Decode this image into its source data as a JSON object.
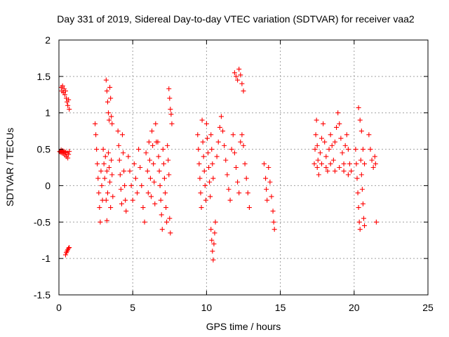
{
  "chart_data": {
    "type": "scatter",
    "title": "Day 331 of 2019, Sidereal Day-to-day VTEC variation (SDTVAR) for receiver vaa2",
    "xlabel": "GPS time / hours",
    "ylabel": "SDTVAR / TECUs",
    "xlim": [
      0,
      25
    ],
    "ylim": [
      -1.5,
      2
    ],
    "xticks": [
      0,
      5,
      10,
      15,
      20,
      25
    ],
    "xtick_labels": [
      "0",
      "5",
      "10",
      "15",
      "20",
      "25"
    ],
    "yticks": [
      -1.5,
      -1,
      -0.5,
      0,
      0.5,
      1,
      1.5,
      2
    ],
    "ytick_labels": [
      "-1.5",
      "-1",
      "-0.5",
      "0",
      "0.5",
      "1",
      "1.5",
      "2"
    ],
    "grid": true,
    "marker": "+",
    "color": "#ff0000",
    "series": [
      {
        "name": "SDTVAR",
        "points": [
          [
            0.05,
            0.47
          ],
          [
            0.1,
            0.46
          ],
          [
            0.15,
            0.49
          ],
          [
            0.2,
            0.45
          ],
          [
            0.25,
            0.48
          ],
          [
            0.3,
            0.44
          ],
          [
            0.35,
            0.47
          ],
          [
            0.4,
            0.42
          ],
          [
            0.45,
            0.46
          ],
          [
            0.5,
            0.4
          ],
          [
            0.55,
            0.45
          ],
          [
            0.6,
            0.38
          ],
          [
            0.65,
            0.43
          ],
          [
            0.7,
            0.47
          ],
          [
            0.15,
            1.35
          ],
          [
            0.2,
            1.3
          ],
          [
            0.25,
            1.37
          ],
          [
            0.3,
            1.28
          ],
          [
            0.35,
            1.33
          ],
          [
            0.4,
            1.25
          ],
          [
            0.45,
            1.3
          ],
          [
            0.5,
            1.2
          ],
          [
            0.55,
            1.15
          ],
          [
            0.6,
            1.1
          ],
          [
            0.65,
            1.18
          ],
          [
            0.7,
            1.05
          ],
          [
            0.45,
            -0.95
          ],
          [
            0.5,
            -0.92
          ],
          [
            0.55,
            -0.9
          ],
          [
            0.6,
            -0.88
          ],
          [
            0.65,
            -0.86
          ],
          [
            0.7,
            -0.85
          ],
          [
            2.45,
            0.85
          ],
          [
            2.5,
            0.7
          ],
          [
            2.55,
            0.5
          ],
          [
            2.6,
            0.3
          ],
          [
            2.65,
            0.1
          ],
          [
            2.7,
            -0.1
          ],
          [
            2.75,
            -0.3
          ],
          [
            2.8,
            -0.5
          ],
          [
            2.85,
            0.2
          ],
          [
            2.9,
            0.0
          ],
          [
            2.95,
            -0.2
          ],
          [
            3.0,
            0.5
          ],
          [
            3.05,
            0.3
          ],
          [
            3.1,
            0.1
          ],
          [
            3.15,
            0.4
          ],
          [
            3.2,
            -0.2
          ],
          [
            3.25,
            0.2
          ],
          [
            3.3,
            -0.1
          ],
          [
            3.35,
            0.45
          ],
          [
            3.4,
            0.25
          ],
          [
            3.45,
            0.05
          ],
          [
            3.5,
            -0.3
          ],
          [
            3.55,
            0.35
          ],
          [
            3.6,
            0.15
          ],
          [
            3.65,
            -0.15
          ],
          [
            3.2,
            1.45
          ],
          [
            3.25,
            1.3
          ],
          [
            3.3,
            1.15
          ],
          [
            3.35,
            1.0
          ],
          [
            3.4,
            0.9
          ],
          [
            3.45,
            1.35
          ],
          [
            3.5,
            1.2
          ],
          [
            3.55,
            0.95
          ],
          [
            3.6,
            0.85
          ],
          [
            3.25,
            -0.48
          ],
          [
            4.0,
            0.75
          ],
          [
            4.05,
            0.55
          ],
          [
            4.1,
            0.35
          ],
          [
            4.15,
            0.15
          ],
          [
            4.2,
            -0.05
          ],
          [
            4.25,
            -0.25
          ],
          [
            4.3,
            0.7
          ],
          [
            4.35,
            0.45
          ],
          [
            4.4,
            0.2
          ],
          [
            4.45,
            0.0
          ],
          [
            4.5,
            -0.2
          ],
          [
            4.55,
            -0.35
          ],
          [
            4.7,
            0.4
          ],
          [
            4.8,
            0.2
          ],
          [
            4.9,
            0.0
          ],
          [
            5.0,
            -0.2
          ],
          [
            5.1,
            0.3
          ],
          [
            5.2,
            0.1
          ],
          [
            5.3,
            -0.1
          ],
          [
            5.4,
            0.5
          ],
          [
            5.5,
            0.25
          ],
          [
            5.6,
            0.0
          ],
          [
            5.7,
            -0.3
          ],
          [
            5.8,
            -0.5
          ],
          [
            5.9,
            0.45
          ],
          [
            6.0,
            0.2
          ],
          [
            6.05,
            -0.1
          ],
          [
            6.1,
            0.6
          ],
          [
            6.15,
            0.35
          ],
          [
            6.2,
            0.1
          ],
          [
            6.25,
            -0.15
          ],
          [
            6.3,
            0.75
          ],
          [
            6.35,
            0.55
          ],
          [
            6.4,
            0.3
          ],
          [
            6.45,
            0.05
          ],
          [
            6.5,
            -0.25
          ],
          [
            6.55,
            0.85
          ],
          [
            6.6,
            0.6
          ],
          [
            6.7,
            0.6
          ],
          [
            6.75,
            0.4
          ],
          [
            6.8,
            0.2
          ],
          [
            6.85,
            0.0
          ],
          [
            6.9,
            -0.2
          ],
          [
            6.95,
            -0.4
          ],
          [
            7.0,
            -0.6
          ],
          [
            7.05,
            0.5
          ],
          [
            7.1,
            0.3
          ],
          [
            7.15,
            0.1
          ],
          [
            7.2,
            -0.1
          ],
          [
            7.25,
            -0.3
          ],
          [
            7.3,
            -0.5
          ],
          [
            7.35,
            0.55
          ],
          [
            7.4,
            0.35
          ],
          [
            7.45,
            0.15
          ],
          [
            7.5,
            -0.45
          ],
          [
            7.55,
            -0.65
          ],
          [
            7.45,
            1.33
          ],
          [
            7.5,
            1.2
          ],
          [
            7.55,
            1.05
          ],
          [
            7.6,
            0.98
          ],
          [
            7.65,
            0.85
          ],
          [
            9.4,
            0.7
          ],
          [
            9.45,
            0.5
          ],
          [
            9.5,
            0.3
          ],
          [
            9.55,
            0.1
          ],
          [
            9.6,
            -0.1
          ],
          [
            9.65,
            -0.3
          ],
          [
            9.7,
            0.9
          ],
          [
            9.75,
            0.6
          ],
          [
            9.8,
            0.4
          ],
          [
            9.85,
            0.2
          ],
          [
            9.9,
            0.0
          ],
          [
            9.95,
            -0.2
          ],
          [
            10.0,
            0.85
          ],
          [
            10.05,
            0.65
          ],
          [
            10.1,
            0.45
          ],
          [
            10.15,
            0.25
          ],
          [
            10.2,
            0.05
          ],
          [
            10.25,
            -0.15
          ],
          [
            10.3,
            0.7
          ],
          [
            10.35,
            0.5
          ],
          [
            10.4,
            0.3
          ],
          [
            10.45,
            0.1
          ],
          [
            10.3,
            -0.6
          ],
          [
            10.35,
            -0.75
          ],
          [
            10.4,
            -0.9
          ],
          [
            10.45,
            -1.02
          ],
          [
            10.5,
            -0.8
          ],
          [
            10.55,
            -0.65
          ],
          [
            10.6,
            -0.5
          ],
          [
            10.7,
            0.4
          ],
          [
            10.8,
            0.6
          ],
          [
            10.9,
            0.8
          ],
          [
            11.0,
            0.95
          ],
          [
            11.1,
            0.75
          ],
          [
            11.2,
            0.55
          ],
          [
            11.3,
            0.35
          ],
          [
            11.4,
            0.15
          ],
          [
            11.5,
            -0.05
          ],
          [
            11.6,
            -0.2
          ],
          [
            11.7,
            0.5
          ],
          [
            11.8,
            0.7
          ],
          [
            11.9,
            0.45
          ],
          [
            12.0,
            0.25
          ],
          [
            12.1,
            0.05
          ],
          [
            12.2,
            -0.1
          ],
          [
            12.3,
            0.6
          ],
          [
            12.4,
            0.7
          ],
          [
            12.5,
            0.55
          ],
          [
            12.6,
            0.3
          ],
          [
            12.7,
            0.1
          ],
          [
            12.8,
            -0.1
          ],
          [
            12.9,
            -0.3
          ],
          [
            11.9,
            1.55
          ],
          [
            12.0,
            1.5
          ],
          [
            12.1,
            1.45
          ],
          [
            12.2,
            1.6
          ],
          [
            12.3,
            1.52
          ],
          [
            12.4,
            1.4
          ],
          [
            12.5,
            1.3
          ],
          [
            13.9,
            0.3
          ],
          [
            14.0,
            0.1
          ],
          [
            14.05,
            -0.05
          ],
          [
            14.1,
            -0.2
          ],
          [
            14.2,
            0.25
          ],
          [
            14.3,
            0.05
          ],
          [
            14.4,
            -0.15
          ],
          [
            14.5,
            -0.35
          ],
          [
            14.55,
            -0.5
          ],
          [
            14.6,
            -0.6
          ],
          [
            17.3,
            0.3
          ],
          [
            17.35,
            0.5
          ],
          [
            17.4,
            0.7
          ],
          [
            17.45,
            0.9
          ],
          [
            17.5,
            0.55
          ],
          [
            17.55,
            0.35
          ],
          [
            17.6,
            0.15
          ],
          [
            17.7,
            0.45
          ],
          [
            17.8,
            0.65
          ],
          [
            17.9,
            0.85
          ],
          [
            18.0,
            0.6
          ],
          [
            18.1,
            0.4
          ],
          [
            18.2,
            0.2
          ],
          [
            18.3,
            0.5
          ],
          [
            18.4,
            0.7
          ],
          [
            18.5,
            0.55
          ],
          [
            18.6,
            0.35
          ],
          [
            18.7,
            0.6
          ],
          [
            18.8,
            0.8
          ],
          [
            18.9,
            1.0
          ],
          [
            19.0,
            0.85
          ],
          [
            19.1,
            0.65
          ],
          [
            19.2,
            0.45
          ],
          [
            19.3,
            0.3
          ],
          [
            19.4,
            0.55
          ],
          [
            19.5,
            0.7
          ],
          [
            19.6,
            0.5
          ],
          [
            19.7,
            0.3
          ],
          [
            19.8,
            0.2
          ],
          [
            17.5,
            0.25
          ],
          [
            17.8,
            0.3
          ],
          [
            18.1,
            0.25
          ],
          [
            18.4,
            0.3
          ],
          [
            18.7,
            0.2
          ],
          [
            19.0,
            0.25
          ],
          [
            19.3,
            0.2
          ],
          [
            19.6,
            0.15
          ],
          [
            20.1,
            0.5
          ],
          [
            20.15,
            0.3
          ],
          [
            20.2,
            0.1
          ],
          [
            20.25,
            -0.1
          ],
          [
            20.3,
            -0.3
          ],
          [
            20.35,
            -0.5
          ],
          [
            20.4,
            -0.6
          ],
          [
            20.45,
            0.35
          ],
          [
            20.5,
            0.15
          ],
          [
            20.55,
            -0.05
          ],
          [
            20.6,
            -0.25
          ],
          [
            20.65,
            -0.45
          ],
          [
            20.7,
            -0.55
          ],
          [
            20.3,
            1.07
          ],
          [
            20.4,
            0.9
          ],
          [
            20.5,
            0.75
          ],
          [
            20.6,
            0.5
          ],
          [
            20.7,
            0.3
          ],
          [
            21.0,
            0.7
          ],
          [
            21.1,
            0.5
          ],
          [
            21.2,
            0.35
          ],
          [
            21.3,
            0.25
          ],
          [
            21.4,
            0.4
          ],
          [
            21.45,
            0.3
          ],
          [
            21.5,
            -0.5
          ]
        ]
      }
    ]
  }
}
